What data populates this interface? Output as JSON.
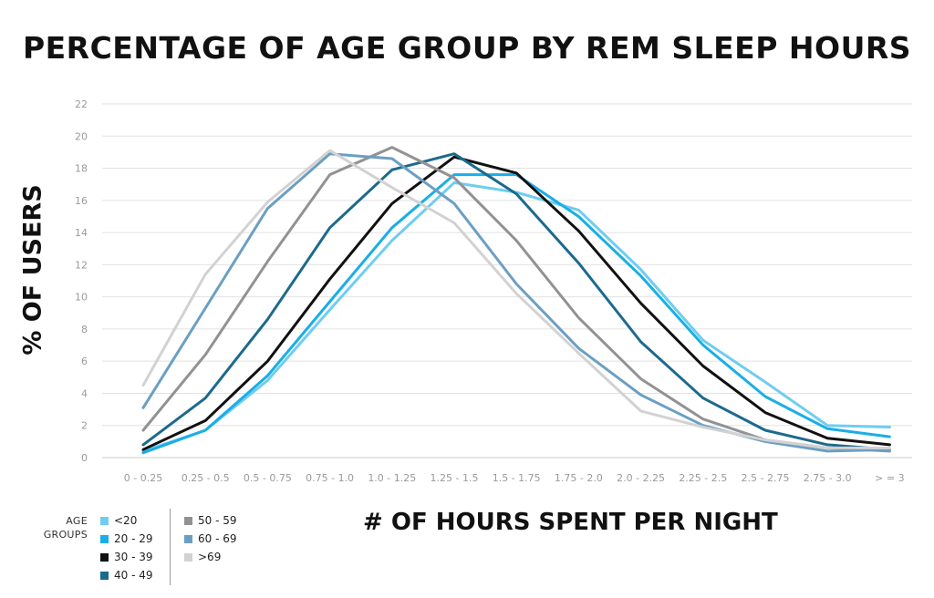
{
  "chart_data": {
    "type": "line",
    "title": "PERCENTAGE OF AGE GROUP BY REM SLEEP HOURS",
    "xlabel": "# OF HOURS SPENT PER NIGHT",
    "ylabel": "% OF USERS",
    "categories": [
      "0 - 0.25",
      "0.25 - 0.5",
      "0.5 - 0.75",
      "0.75 - 1.0",
      "1.0 - 1.25",
      "1.25 - 1.5",
      "1.5 - 1.75",
      "1.75 - 2.0",
      "2.0 - 2.25",
      "2.25 - 2.5",
      "2.5 - 2.75",
      "2.75 - 3.0",
      "> = 3"
    ],
    "ylim": [
      0,
      22
    ],
    "yticks": [
      "0",
      "2",
      "4",
      "6",
      "8",
      "10",
      "12",
      "14",
      "16",
      "18",
      "20",
      "22"
    ],
    "grid": true,
    "legend": {
      "title_line1": "AGE",
      "title_line2": "GROUPS",
      "placement": "bottom-left"
    },
    "series": [
      {
        "name": "<20",
        "color": "#6fcdf0",
        "values": [
          0.4,
          1.7,
          4.8,
          9.2,
          13.5,
          17.1,
          16.5,
          15.4,
          11.7,
          7.3,
          4.7,
          2.0,
          1.9
        ]
      },
      {
        "name": "20 - 29",
        "color": "#1aaee6",
        "values": [
          0.3,
          1.7,
          5.1,
          9.7,
          14.3,
          17.6,
          17.6,
          15.0,
          11.3,
          7.0,
          3.8,
          1.8,
          1.3
        ]
      },
      {
        "name": "30 - 39",
        "color": "#111111",
        "values": [
          0.5,
          2.3,
          6.0,
          11.1,
          15.8,
          18.7,
          17.7,
          14.1,
          9.6,
          5.7,
          2.8,
          1.2,
          0.8
        ]
      },
      {
        "name": "40 - 49",
        "color": "#1c6a8c",
        "values": [
          0.8,
          3.7,
          8.6,
          14.3,
          17.9,
          18.9,
          16.4,
          12.1,
          7.2,
          3.7,
          1.7,
          0.8,
          0.5
        ]
      },
      {
        "name": "50 - 59",
        "color": "#929292",
        "values": [
          1.7,
          6.4,
          12.2,
          17.6,
          19.3,
          17.4,
          13.5,
          8.7,
          4.9,
          2.4,
          1.1,
          0.6,
          0.4
        ]
      },
      {
        "name": "60 - 69",
        "color": "#6b9fc2",
        "values": [
          3.1,
          9.3,
          15.5,
          18.9,
          18.6,
          15.8,
          10.8,
          6.8,
          3.9,
          2.0,
          1.0,
          0.4,
          0.5
        ]
      },
      {
        "name": ">69",
        "color": "#d2d2d2",
        "values": [
          4.5,
          11.4,
          15.9,
          19.1,
          16.8,
          14.6,
          10.2,
          6.5,
          2.9,
          1.9,
          1.1,
          0.6,
          0.6
        ]
      }
    ]
  }
}
